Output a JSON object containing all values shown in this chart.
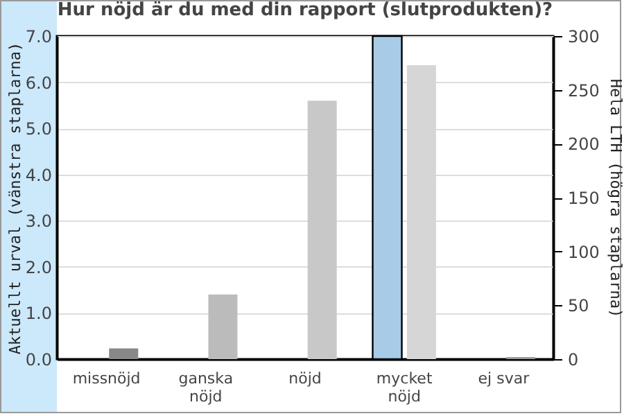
{
  "chart_data": {
    "type": "bar",
    "title": "Hur nöjd är du med din rapport (slutprodukten)?",
    "categories": [
      "missnöjd",
      "ganska nöjd",
      "nöjd",
      "mycket nöjd",
      "ej svar"
    ],
    "ylabel": "Aktuellt urval (vänstra staplarna)",
    "y2label": "Hela LTH (högra staplarna)",
    "series": [
      {
        "color": "#a8cce8",
        "values": [
          null,
          null,
          null,
          7,
          null
        ]
      },
      {
        "axis": "y2",
        "colors": [
          "#888888",
          "#bbbbbb",
          "#c8c8c8",
          "#d6d6d6",
          "#999999"
        ],
        "values": [
          10,
          60,
          240,
          273,
          2
        ]
      }
    ],
    "ylim": [
      0,
      7
    ],
    "yticks": [
      {
        "value": 0,
        "label": "0.0"
      },
      {
        "value": 1,
        "label": "1.0"
      },
      {
        "value": 2,
        "label": "2.0"
      },
      {
        "value": 3,
        "label": "3.0"
      },
      {
        "value": 4,
        "label": "4.0"
      },
      {
        "value": 5,
        "label": "5.0"
      },
      {
        "value": 6,
        "label": "6.0"
      },
      {
        "value": 7,
        "label": "7.0"
      }
    ],
    "y2lim": [
      0,
      300
    ],
    "y2ticks": [
      0,
      50,
      100,
      150,
      200,
      250,
      300
    ],
    "grid": "y"
  }
}
